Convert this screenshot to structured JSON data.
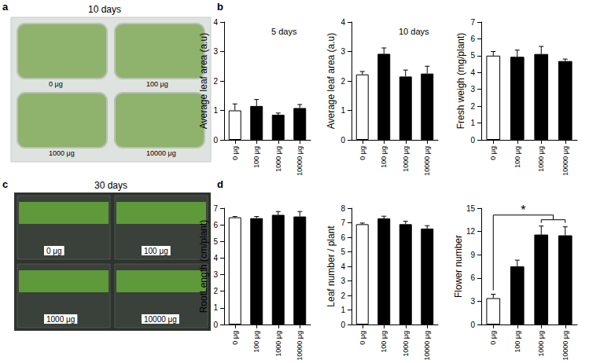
{
  "figure_panels": [
    {
      "letter": "a",
      "kind": "photo",
      "title": "10 days",
      "labels": [
        "0 μg",
        "100 μg",
        "1000 μg",
        "10000 μg"
      ]
    },
    {
      "letter": "b",
      "kind": "charts"
    },
    {
      "letter": "c",
      "kind": "photo",
      "title": "30 days",
      "labels": [
        "0 μg",
        "100 μg",
        "1000 μg",
        "10000 μg"
      ]
    },
    {
      "letter": "d",
      "kind": "charts"
    }
  ],
  "chart_data": [
    {
      "type": "bar",
      "ylabel": "Average leaf area (a.u)",
      "annotation": "5 days",
      "categories": [
        "0 μg",
        "100 μg",
        "1000 μg",
        "10000 μg"
      ],
      "values": [
        1.0,
        1.15,
        0.85,
        1.08
      ],
      "errors": [
        0.22,
        0.22,
        0.06,
        0.12
      ],
      "colors": [
        "#ffffff",
        "#000000",
        "#000000",
        "#000000"
      ],
      "ylim": [
        0,
        4
      ],
      "yticks": [
        0,
        1,
        2,
        3,
        4
      ],
      "grid": false
    },
    {
      "type": "bar",
      "ylabel": "Average leaf area (a.u)",
      "annotation": "10 days",
      "categories": [
        "0 μg",
        "100 μg",
        "1000 μg",
        "10000 μg"
      ],
      "values": [
        2.22,
        2.92,
        2.15,
        2.25
      ],
      "errors": [
        0.1,
        0.2,
        0.22,
        0.25
      ],
      "colors": [
        "#ffffff",
        "#000000",
        "#000000",
        "#000000"
      ],
      "ylim": [
        0,
        4
      ],
      "yticks": [
        0,
        1,
        2,
        3,
        4
      ],
      "grid": false
    },
    {
      "type": "bar",
      "ylabel": "Fresh weigh (mg/plant)",
      "categories": [
        "0 μg",
        "100 μg",
        "1000 μg",
        "10000 μg"
      ],
      "values": [
        5.0,
        4.93,
        5.1,
        4.68
      ],
      "errors": [
        0.25,
        0.4,
        0.45,
        0.12
      ],
      "colors": [
        "#ffffff",
        "#000000",
        "#000000",
        "#000000"
      ],
      "ylim": [
        0,
        7
      ],
      "yticks": [
        0,
        1,
        2,
        3,
        4,
        5,
        6,
        7
      ],
      "grid": false
    },
    {
      "type": "bar",
      "ylabel": "RootLength (cm/plant)",
      "categories": [
        "0 μg",
        "100 μg",
        "1000 μg",
        "10000 μg"
      ],
      "values": [
        6.45,
        6.4,
        6.6,
        6.5
      ],
      "errors": [
        0.05,
        0.1,
        0.2,
        0.3
      ],
      "colors": [
        "#ffffff",
        "#000000",
        "#000000",
        "#000000"
      ],
      "ylim": [
        0,
        7
      ],
      "yticks": [
        0,
        1,
        2,
        3,
        4,
        5,
        6,
        7
      ],
      "grid": false
    },
    {
      "type": "bar",
      "ylabel": "Leaf number / plant",
      "categories": [
        "0 μg",
        "100 μg",
        "1000 μg",
        "10000 μg"
      ],
      "values": [
        6.9,
        7.3,
        6.9,
        6.6
      ],
      "errors": [
        0.08,
        0.15,
        0.2,
        0.2
      ],
      "colors": [
        "#ffffff",
        "#000000",
        "#000000",
        "#000000"
      ],
      "ylim": [
        0,
        8
      ],
      "yticks": [
        0,
        1,
        2,
        3,
        4,
        5,
        6,
        7,
        8
      ],
      "grid": false
    },
    {
      "type": "bar",
      "ylabel": "Flower number",
      "categories": [
        "0 μg",
        "100 μg",
        "1000 μg",
        "10000 μg"
      ],
      "values": [
        3.4,
        7.5,
        11.6,
        11.5
      ],
      "errors": [
        0.5,
        0.8,
        1.1,
        1.1
      ],
      "colors": [
        "#ffffff",
        "#000000",
        "#000000",
        "#000000"
      ],
      "significance": {
        "from": "0 μg",
        "to": [
          "1000 μg",
          "10000 μg"
        ],
        "label": "*"
      },
      "ylim": [
        0,
        15
      ],
      "yticks": [
        0,
        3,
        6,
        9,
        12,
        15
      ],
      "grid": false
    }
  ]
}
